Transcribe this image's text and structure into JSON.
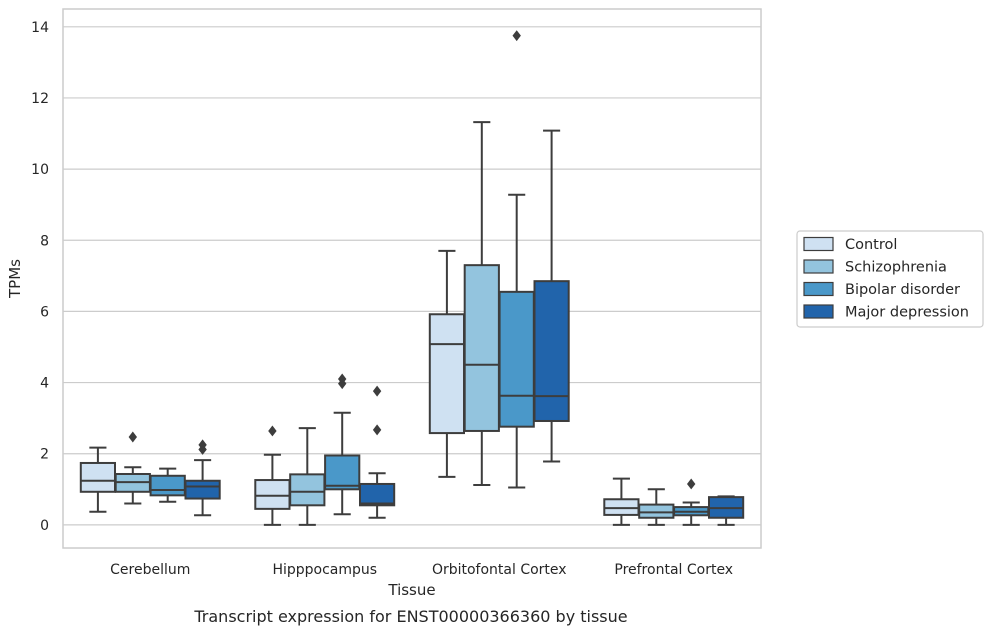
{
  "chart_data": {
    "type": "box",
    "xlabel": "Tissue",
    "ylabel": "TPMs",
    "caption": "Transcript expression for ENST00000366360 by tissue",
    "ylim": [
      -0.65,
      14.5
    ],
    "yticks": [
      0,
      2,
      4,
      6,
      8,
      10,
      12,
      14
    ],
    "grid": "horizontal",
    "legend_position": "right",
    "categories": [
      "Cerebellum",
      "Hipppocampus",
      "Orbitofontal Cortex",
      "Prefrontal Cortex"
    ],
    "series": [
      {
        "name": "Control",
        "color": "#cfe1f2",
        "boxes": [
          {
            "whisker_low": 0.37,
            "q1": 0.93,
            "median": 1.24,
            "q3": 1.74,
            "whisker_high": 2.17,
            "outliers": []
          },
          {
            "whisker_low": 0.0,
            "q1": 0.45,
            "median": 0.82,
            "q3": 1.26,
            "whisker_high": 1.97,
            "outliers": [
              2.64
            ]
          },
          {
            "whisker_low": 1.35,
            "q1": 2.58,
            "median": 5.08,
            "q3": 5.92,
            "whisker_high": 7.7,
            "outliers": []
          },
          {
            "whisker_low": 0.0,
            "q1": 0.28,
            "median": 0.47,
            "q3": 0.72,
            "whisker_high": 1.3,
            "outliers": []
          }
        ]
      },
      {
        "name": "Schizophrenia",
        "color": "#93c4de",
        "boxes": [
          {
            "whisker_low": 0.6,
            "q1": 0.93,
            "median": 1.2,
            "q3": 1.43,
            "whisker_high": 1.62,
            "outliers": [
              2.47
            ]
          },
          {
            "whisker_low": 0.0,
            "q1": 0.55,
            "median": 0.93,
            "q3": 1.42,
            "whisker_high": 2.72,
            "outliers": []
          },
          {
            "whisker_low": 1.12,
            "q1": 2.64,
            "median": 4.5,
            "q3": 7.3,
            "whisker_high": 11.32,
            "outliers": []
          },
          {
            "whisker_low": 0.0,
            "q1": 0.2,
            "median": 0.35,
            "q3": 0.57,
            "whisker_high": 1.0,
            "outliers": []
          }
        ]
      },
      {
        "name": "Bipolar disorder",
        "color": "#4a98c9",
        "boxes": [
          {
            "whisker_low": 0.65,
            "q1": 0.83,
            "median": 0.98,
            "q3": 1.38,
            "whisker_high": 1.58,
            "outliers": []
          },
          {
            "whisker_low": 0.3,
            "q1": 1.0,
            "median": 1.1,
            "q3": 1.95,
            "whisker_high": 3.15,
            "outliers": [
              3.97,
              4.1
            ]
          },
          {
            "whisker_low": 1.05,
            "q1": 2.76,
            "median": 3.63,
            "q3": 6.55,
            "whisker_high": 9.28,
            "outliers": [
              13.75
            ]
          },
          {
            "whisker_low": 0.0,
            "q1": 0.27,
            "median": 0.37,
            "q3": 0.5,
            "whisker_high": 0.63,
            "outliers": [
              1.15
            ]
          }
        ]
      },
      {
        "name": "Major depression",
        "color": "#2164ab",
        "boxes": [
          {
            "whisker_low": 0.27,
            "q1": 0.74,
            "median": 1.08,
            "q3": 1.24,
            "whisker_high": 1.82,
            "outliers": [
              2.12,
              2.25
            ]
          },
          {
            "whisker_low": 0.2,
            "q1": 0.55,
            "median": 0.6,
            "q3": 1.15,
            "whisker_high": 1.45,
            "outliers": [
              2.67,
              3.76
            ]
          },
          {
            "whisker_low": 1.78,
            "q1": 2.92,
            "median": 3.62,
            "q3": 6.85,
            "whisker_high": 11.08,
            "outliers": []
          },
          {
            "whisker_low": 0.0,
            "q1": 0.2,
            "median": 0.47,
            "q3": 0.78,
            "whisker_high": 0.8,
            "outliers": []
          }
        ]
      }
    ]
  }
}
